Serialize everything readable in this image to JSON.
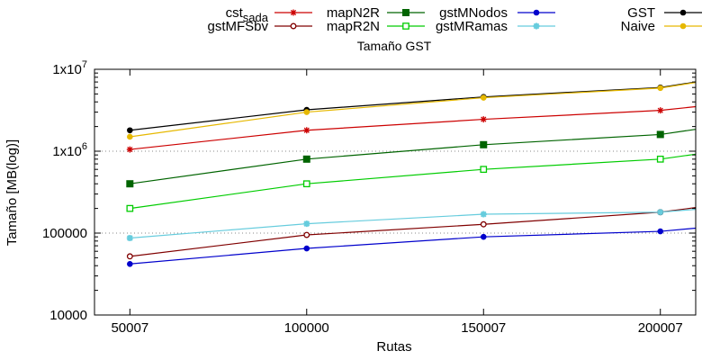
{
  "chart_data": {
    "type": "line",
    "title": "Tamaño GST",
    "xlabel": "Rutas",
    "ylabel": "Tamaño [MB(log)]",
    "y_scale": "log",
    "ylim": [
      10000,
      10000000
    ],
    "xlim": [
      40000,
      210000
    ],
    "x_ticks": [
      50007,
      100000,
      150007,
      200007
    ],
    "x_tick_labels": [
      "50007",
      "100000",
      "150007",
      "200007"
    ],
    "y_ticks": [
      10000,
      100000,
      1000000,
      10000000
    ],
    "y_tick_labels": [
      "10000",
      "100000",
      "1x10^6",
      "1x10^7"
    ],
    "grid": "horizontal dotted at 100000 and 1000000",
    "legend_placement": "top, outside plot",
    "x": [
      50007,
      100000,
      150007,
      200007,
      210000
    ],
    "series": [
      {
        "name": "cst_sada",
        "name_main": "cst",
        "name_sub": "sada",
        "color": "#cc0000",
        "marker": "asterisk",
        "values": [
          1050000,
          1800000,
          2450000,
          3150000,
          3500000
        ]
      },
      {
        "name": "gstMFSbv",
        "color": "#800000",
        "marker": "open-circle",
        "values": [
          52000,
          95000,
          128000,
          180000,
          205000
        ]
      },
      {
        "name": "mapN2R",
        "color": "#006400",
        "marker": "filled-square",
        "values": [
          400000,
          800000,
          1200000,
          1600000,
          1850000
        ]
      },
      {
        "name": "mapR2N",
        "color": "#00cc00",
        "marker": "open-square",
        "values": [
          200000,
          400000,
          600000,
          800000,
          920000
        ]
      },
      {
        "name": "gstMNodos",
        "color": "#0000cc",
        "marker": "filled-circle",
        "values": [
          42000,
          65000,
          90000,
          105000,
          115000
        ]
      },
      {
        "name": "gstMRamas",
        "color": "#66ccdd",
        "marker": "star",
        "values": [
          87000,
          130000,
          170000,
          180000,
          195000
        ]
      },
      {
        "name": "GST",
        "color": "#000000",
        "marker": "filled-circle",
        "values": [
          1800000,
          3200000,
          4600000,
          6000000,
          7000000
        ]
      },
      {
        "name": "Naive",
        "color": "#e6b800",
        "marker": "filled-circle",
        "values": [
          1500000,
          3000000,
          4500000,
          5900000,
          6900000
        ]
      }
    ]
  }
}
